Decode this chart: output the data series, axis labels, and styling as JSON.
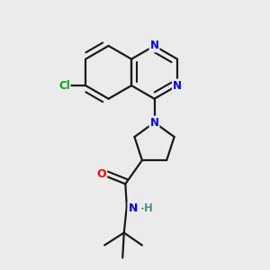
{
  "bg_color": "#ebebeb",
  "bond_color": "#1a1a1a",
  "N_color": "#0000ff",
  "O_color": "#ff0000",
  "Cl_color": "#00aa00",
  "H_color": "#4a9090",
  "line_width": 1.6,
  "figsize": [
    3.0,
    3.0
  ],
  "dpi": 100,
  "xlim": [
    0.05,
    0.95
  ],
  "ylim": [
    0.02,
    0.98
  ]
}
